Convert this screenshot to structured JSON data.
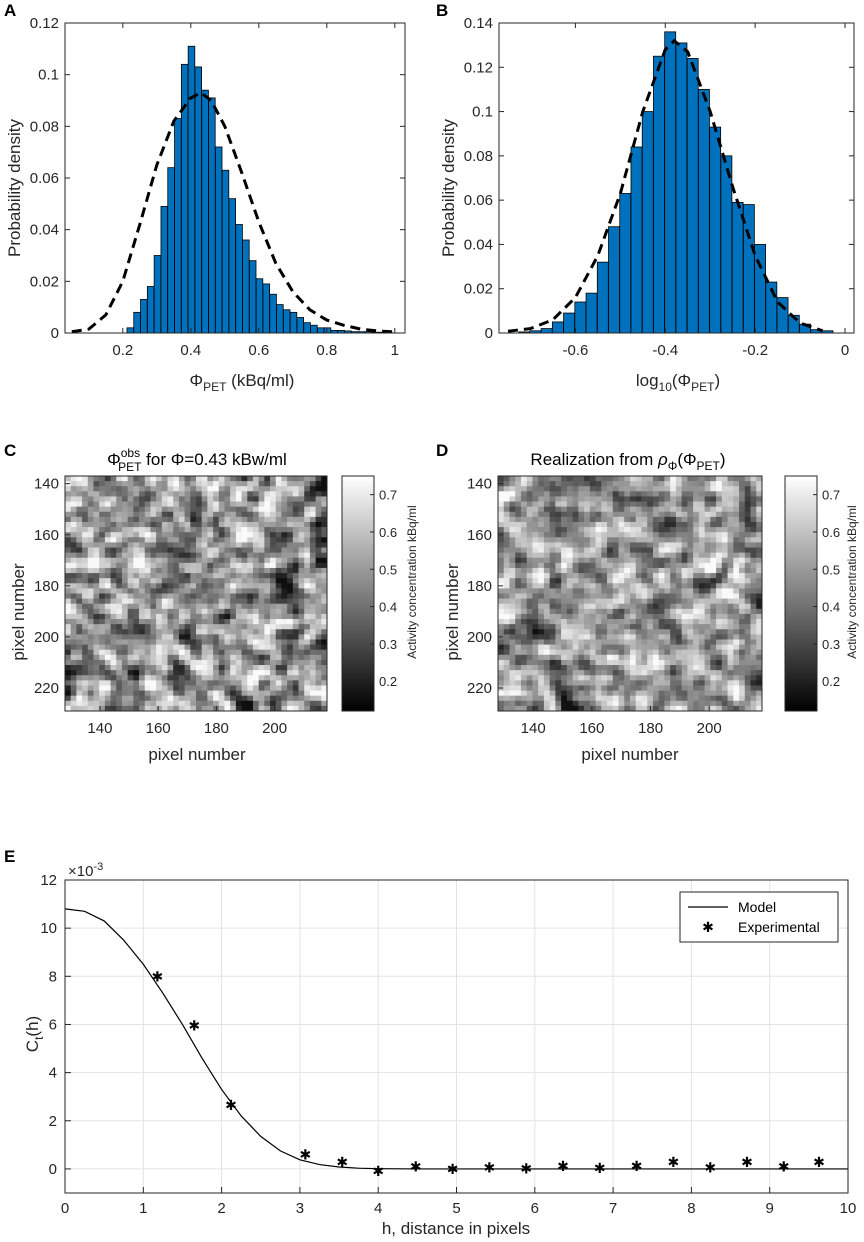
{
  "chart_data": [
    {
      "id": "A",
      "type": "bar",
      "panel_label": "A",
      "xlabel_main": "Φ",
      "xlabel_sub": "PET",
      "xlabel_rest": " (kBq/ml)",
      "ylabel": "Probability density",
      "xlim": [
        0.03,
        1.03
      ],
      "ylim": [
        0,
        0.12
      ],
      "xticks": [
        0.2,
        0.4,
        0.6,
        0.8,
        1
      ],
      "xtick_labels": [
        "0.2",
        "0.4",
        "0.6",
        "0.8",
        "1"
      ],
      "yticks": [
        0,
        0.02,
        0.04,
        0.06,
        0.08,
        0.1,
        0.12
      ],
      "ytick_labels": [
        "0",
        "0.02",
        "0.04",
        "0.06",
        "0.08",
        "0.1",
        "0.12"
      ],
      "bar_width": 0.0195,
      "bar_color": "#0072BD",
      "x": [
        0.222,
        0.242,
        0.262,
        0.282,
        0.302,
        0.322,
        0.342,
        0.362,
        0.382,
        0.402,
        0.422,
        0.442,
        0.462,
        0.482,
        0.502,
        0.522,
        0.542,
        0.562,
        0.582,
        0.602,
        0.622,
        0.642,
        0.662,
        0.682,
        0.702,
        0.722,
        0.742,
        0.762,
        0.782,
        0.802,
        0.822,
        0.842,
        0.862,
        0.882,
        0.902,
        0.922,
        0.942,
        0.962,
        0.982
      ],
      "values": [
        0.002,
        0.008,
        0.013,
        0.018,
        0.03,
        0.049,
        0.064,
        0.083,
        0.104,
        0.111,
        0.103,
        0.094,
        0.091,
        0.072,
        0.063,
        0.052,
        0.042,
        0.036,
        0.028,
        0.021,
        0.019,
        0.015,
        0.011,
        0.009,
        0.008,
        0.006,
        0.004,
        0.003,
        0.002,
        0.002,
        0.001,
        0.001,
        0.0008,
        0.0005,
        0.0005,
        0.0005,
        0.0003,
        0.0003,
        0.0003
      ],
      "fit": {
        "label": "fit",
        "x": [
          0.05,
          0.1,
          0.15,
          0.2,
          0.25,
          0.3,
          0.35,
          0.4,
          0.43,
          0.46,
          0.5,
          0.55,
          0.6,
          0.65,
          0.7,
          0.75,
          0.8,
          0.85,
          0.9,
          0.95,
          1.0
        ],
        "y": [
          0.0005,
          0.0015,
          0.007,
          0.02,
          0.042,
          0.065,
          0.082,
          0.091,
          0.093,
          0.09,
          0.08,
          0.062,
          0.043,
          0.027,
          0.016,
          0.009,
          0.005,
          0.003,
          0.0015,
          0.0008,
          0.0004
        ]
      }
    },
    {
      "id": "B",
      "type": "bar",
      "panel_label": "B",
      "xlabel_main": "log",
      "xlabel_sub": "10",
      "xlabel_rest": "(Φ",
      "xlabel_sub2": "PET",
      "xlabel_end": ")",
      "ylabel": "Probability density",
      "xlim": [
        -0.77,
        0.02
      ],
      "ylim": [
        0,
        0.14
      ],
      "xticks": [
        -0.6,
        -0.4,
        -0.2,
        0
      ],
      "xtick_labels": [
        "-0.6",
        "-0.4",
        "-0.2",
        "0"
      ],
      "yticks": [
        0,
        0.02,
        0.04,
        0.06,
        0.08,
        0.1,
        0.12,
        0.14
      ],
      "ytick_labels": [
        "0",
        "0.02",
        "0.04",
        "0.06",
        "0.08",
        "0.1",
        "0.12",
        "0.14"
      ],
      "bar_width": 0.0245,
      "bar_color": "#0072BD",
      "x": [
        -0.714,
        -0.689,
        -0.664,
        -0.639,
        -0.614,
        -0.589,
        -0.564,
        -0.539,
        -0.514,
        -0.489,
        -0.464,
        -0.439,
        -0.414,
        -0.389,
        -0.364,
        -0.339,
        -0.314,
        -0.289,
        -0.264,
        -0.239,
        -0.214,
        -0.189,
        -0.164,
        -0.139,
        -0.114,
        -0.089,
        -0.064,
        -0.039
      ],
      "values": [
        0.0005,
        0.001,
        0.002,
        0.005,
        0.009,
        0.014,
        0.018,
        0.032,
        0.048,
        0.063,
        0.084,
        0.1,
        0.125,
        0.136,
        0.131,
        0.124,
        0.11,
        0.093,
        0.08,
        0.059,
        0.058,
        0.04,
        0.023,
        0.016,
        0.008,
        0.004,
        0.0015,
        0.001
      ],
      "fit": {
        "label": "fit",
        "x": [
          -0.75,
          -0.7,
          -0.65,
          -0.6,
          -0.55,
          -0.5,
          -0.45,
          -0.4,
          -0.38,
          -0.35,
          -0.3,
          -0.25,
          -0.2,
          -0.15,
          -0.1,
          -0.05
        ],
        "y": [
          0.0008,
          0.002,
          0.006,
          0.016,
          0.035,
          0.063,
          0.1,
          0.128,
          0.132,
          0.127,
          0.1,
          0.066,
          0.035,
          0.014,
          0.0045,
          0.001
        ]
      }
    },
    {
      "id": "C",
      "type": "heatmap",
      "panel_label": "C",
      "title_main": "Φ",
      "title_sup": "obs",
      "title_sub": "PET",
      "title_rest": " for Φ=0.43 kBw/ml",
      "xlabel": "pixel number",
      "ylabel": "pixel number",
      "xlim": [
        128,
        218
      ],
      "ylim": [
        137,
        229
      ],
      "xticks": [
        140,
        160,
        180,
        200
      ],
      "xtick_labels": [
        "140",
        "160",
        "180",
        "200"
      ],
      "yticks": [
        140,
        160,
        180,
        200,
        220
      ],
      "ytick_labels": [
        "140",
        "160",
        "180",
        "200",
        "220"
      ],
      "colorbar_label": "Activity concentration kBq/ml",
      "clim": [
        0.12,
        0.75
      ],
      "colorbar_ticks": [
        0.2,
        0.3,
        0.4,
        0.5,
        0.6,
        0.7
      ],
      "colorbar_tick_labels": [
        "0.2",
        "0.3",
        "0.4",
        "0.5",
        "0.6",
        "0.7"
      ],
      "colormap": "gray",
      "seed": 7
    },
    {
      "id": "D",
      "type": "heatmap",
      "panel_label": "D",
      "title_main": "Realization from ",
      "title_rho": "ρ",
      "title_rho_sub": "Φ",
      "title_rest": "(Φ",
      "title_sub": "PET",
      "title_end": ")",
      "xlabel": "pixel number",
      "ylabel": "pixel number",
      "xlim": [
        128,
        218
      ],
      "ylim": [
        137,
        229
      ],
      "xticks": [
        140,
        160,
        180,
        200
      ],
      "xtick_labels": [
        "140",
        "160",
        "180",
        "200"
      ],
      "yticks": [
        140,
        160,
        180,
        200,
        220
      ],
      "ytick_labels": [
        "140",
        "160",
        "180",
        "200",
        "220"
      ],
      "colorbar_label": "Activity concentration kBq/ml",
      "clim": [
        0.12,
        0.75
      ],
      "colorbar_ticks": [
        0.2,
        0.3,
        0.4,
        0.5,
        0.6,
        0.7
      ],
      "colorbar_tick_labels": [
        "0.2",
        "0.3",
        "0.4",
        "0.5",
        "0.6",
        "0.7"
      ],
      "colormap": "gray",
      "seed": 23
    },
    {
      "id": "E",
      "type": "line",
      "panel_label": "E",
      "xlabel": "h, distance in pixels",
      "ylabel_main": "C",
      "ylabel_sub": "t",
      "ylabel_rest": "(h)",
      "exponent_label": "×10",
      "exponent_power": "-3",
      "xlim": [
        0,
        10
      ],
      "ylim": [
        -1,
        12
      ],
      "xticks": [
        0,
        1,
        2,
        3,
        4,
        5,
        6,
        7,
        8,
        9,
        10
      ],
      "xtick_labels": [
        "0",
        "1",
        "2",
        "3",
        "4",
        "5",
        "6",
        "7",
        "8",
        "9",
        "10"
      ],
      "yticks": [
        0,
        2,
        4,
        6,
        8,
        10,
        12
      ],
      "ytick_labels": [
        "0",
        "2",
        "4",
        "6",
        "8",
        "10",
        "12"
      ],
      "grid": true,
      "legend_position": "top-right",
      "series": [
        {
          "name": "Model",
          "style": "line",
          "x": [
            0,
            0.25,
            0.5,
            0.75,
            1,
            1.25,
            1.5,
            1.75,
            2,
            2.25,
            2.5,
            2.75,
            3,
            3.25,
            3.5,
            3.75,
            4,
            4.5,
            5,
            6,
            7,
            8,
            9,
            10
          ],
          "y": [
            10.8,
            10.7,
            10.3,
            9.5,
            8.5,
            7.3,
            6.0,
            4.6,
            3.3,
            2.2,
            1.35,
            0.75,
            0.38,
            0.18,
            0.08,
            0.03,
            0.01,
            0.0,
            0,
            0,
            0,
            0,
            0,
            0
          ]
        },
        {
          "name": "Experimental",
          "style": "marker",
          "x": [
            1.18,
            1.65,
            2.12,
            3.07,
            3.54,
            4.0,
            4.48,
            4.95,
            5.42,
            5.89,
            6.36,
            6.83,
            7.3,
            7.77,
            8.24,
            8.71,
            9.18,
            9.63
          ],
          "y": [
            8.0,
            5.95,
            2.65,
            0.6,
            0.28,
            -0.08,
            0.1,
            0.0,
            0.06,
            0.02,
            0.12,
            0.04,
            0.12,
            0.28,
            0.06,
            0.28,
            0.1,
            0.28
          ]
        }
      ]
    }
  ]
}
